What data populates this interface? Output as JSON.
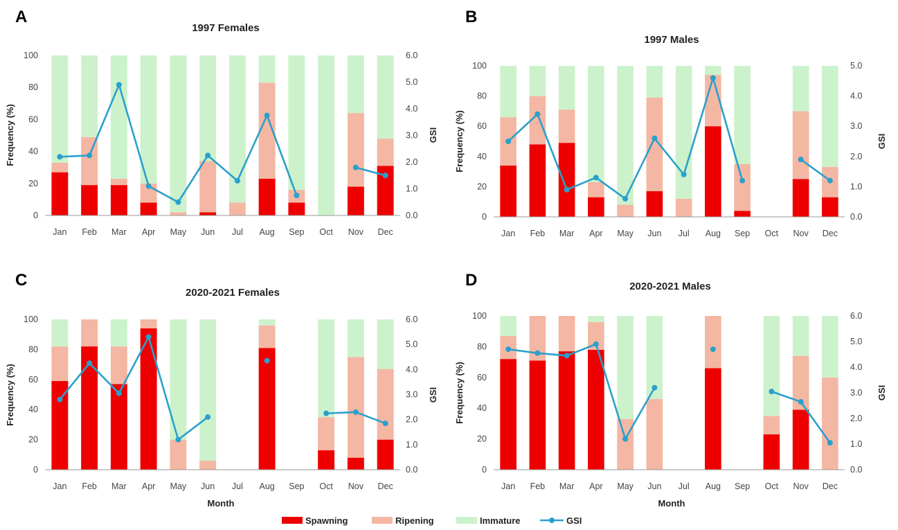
{
  "colors": {
    "spawning": "#ee0000",
    "ripening": "#f4b7a3",
    "immature": "#ccf2cc",
    "gsi": "#2aa0cc",
    "axis": "#9a9a9a"
  },
  "legend": [
    {
      "key": "spawning",
      "label": "Spawning",
      "kind": "box"
    },
    {
      "key": "ripening",
      "label": "Ripening",
      "kind": "box"
    },
    {
      "key": "immature",
      "label": "Immature",
      "kind": "box"
    },
    {
      "key": "gsi",
      "label": "GSI",
      "kind": "line"
    }
  ],
  "chart_data": [
    {
      "panel": "A",
      "type": "bar",
      "title": "1997  Females",
      "xlabel": "",
      "ylabel": "Frequency (%)",
      "y2label": "GSI",
      "ylim": [
        0,
        100
      ],
      "yticks": [
        "0",
        "20",
        "40",
        "60",
        "80",
        "100"
      ],
      "y2lim": [
        0,
        6
      ],
      "y2ticks": [
        "0.0",
        "1.0",
        "2.0",
        "3.0",
        "4.0",
        "5.0",
        "6.0"
      ],
      "categories": [
        "Jan",
        "Feb",
        "Mar",
        "Apr",
        "May",
        "Jun",
        "Jul",
        "Aug",
        "Sep",
        "Oct",
        "Nov",
        "Dec"
      ],
      "series": [
        {
          "key": "spawning",
          "name": "Spawning",
          "values": [
            27,
            19,
            19,
            8,
            0,
            2,
            0,
            23,
            8,
            0,
            18,
            31
          ]
        },
        {
          "key": "ripening",
          "name": "Ripening",
          "values": [
            6,
            30,
            4,
            12,
            2,
            32,
            8,
            60,
            8,
            0,
            46,
            17
          ]
        },
        {
          "key": "immature",
          "name": "Immature",
          "values": [
            67,
            51,
            77,
            80,
            98,
            66,
            92,
            17,
            84,
            100,
            36,
            52
          ]
        }
      ],
      "gsi": [
        2.2,
        2.25,
        4.9,
        1.1,
        0.5,
        2.25,
        1.3,
        3.75,
        0.75,
        null,
        1.8,
        1.5
      ]
    },
    {
      "panel": "B",
      "type": "bar",
      "title": "1997  Males",
      "xlabel": "",
      "ylabel": "Frequency (%)",
      "y2label": "GSI",
      "ylim": [
        0,
        100
      ],
      "yticks": [
        "0",
        "20",
        "40",
        "60",
        "80",
        "100"
      ],
      "y2lim": [
        0,
        5
      ],
      "y2ticks": [
        "0.0",
        "1.0",
        "2.0",
        "3.0",
        "4.0",
        "5.0"
      ],
      "categories": [
        "Jan",
        "Feb",
        "Mar",
        "Apr",
        "May",
        "Jun",
        "Jul",
        "Aug",
        "Sep",
        "Oct",
        "Nov",
        "Dec"
      ],
      "series": [
        {
          "key": "spawning",
          "name": "Spawning",
          "values": [
            34,
            48,
            49,
            13,
            0,
            17,
            0,
            60,
            4,
            0,
            25,
            13
          ]
        },
        {
          "key": "ripening",
          "name": "Ripening",
          "values": [
            32,
            32,
            22,
            10,
            8,
            62,
            12,
            34,
            31,
            0,
            45,
            20
          ]
        },
        {
          "key": "immature",
          "name": "Immature",
          "values": [
            34,
            20,
            29,
            77,
            92,
            21,
            88,
            6,
            65,
            0,
            30,
            67
          ]
        }
      ],
      "gsi": [
        2.5,
        3.4,
        0.9,
        1.3,
        0.6,
        2.6,
        1.4,
        4.6,
        1.2,
        null,
        1.9,
        1.2
      ]
    },
    {
      "panel": "C",
      "type": "bar",
      "title": "2020-2021  Females",
      "xlabel": "Month",
      "ylabel": "Frequency (%)",
      "y2label": "GSI",
      "ylim": [
        0,
        100
      ],
      "yticks": [
        "0",
        "20",
        "40",
        "60",
        "80",
        "100"
      ],
      "y2lim": [
        0,
        6
      ],
      "y2ticks": [
        "0.0",
        "1.0",
        "2.0",
        "3.0",
        "4.0",
        "5.0",
        "6.0"
      ],
      "categories": [
        "Jan",
        "Feb",
        "Mar",
        "Apr",
        "May",
        "Jun",
        "Jul",
        "Aug",
        "Sep",
        "Oct",
        "Nov",
        "Dec"
      ],
      "series": [
        {
          "key": "spawning",
          "name": "Spawning",
          "values": [
            59,
            82,
            57,
            94,
            0,
            0,
            0,
            81,
            0,
            13,
            8,
            20
          ]
        },
        {
          "key": "ripening",
          "name": "Ripening",
          "values": [
            23,
            18,
            25,
            6,
            20,
            6,
            0,
            15,
            0,
            22,
            67,
            47
          ]
        },
        {
          "key": "immature",
          "name": "Immature",
          "values": [
            18,
            0,
            18,
            0,
            80,
            94,
            0,
            4,
            0,
            65,
            25,
            33
          ]
        }
      ],
      "gsi": [
        2.8,
        4.25,
        3.05,
        5.3,
        1.2,
        2.1,
        null,
        4.35,
        null,
        2.25,
        2.3,
        1.85
      ]
    },
    {
      "panel": "D",
      "type": "bar",
      "title": "2020-2021  Males",
      "xlabel": "Month",
      "ylabel": "Frequency (%)",
      "y2label": "GSI",
      "ylim": [
        0,
        100
      ],
      "yticks": [
        "0",
        "20",
        "40",
        "60",
        "80",
        "100"
      ],
      "y2lim": [
        0,
        6
      ],
      "y2ticks": [
        "0.0",
        "1.0",
        "2.0",
        "3.0",
        "4.0",
        "5.0",
        "6.0"
      ],
      "categories": [
        "Jan",
        "Feb",
        "Mar",
        "Apr",
        "May",
        "Jun",
        "Jul",
        "Aug",
        "Sep",
        "Oct",
        "Nov",
        "Dec"
      ],
      "series": [
        {
          "key": "spawning",
          "name": "Spawning",
          "values": [
            72,
            71,
            77,
            78,
            0,
            0,
            0,
            66,
            0,
            23,
            39,
            0
          ]
        },
        {
          "key": "ripening",
          "name": "Ripening",
          "values": [
            15,
            29,
            23,
            18,
            33,
            46,
            0,
            34,
            0,
            12,
            35,
            60
          ]
        },
        {
          "key": "immature",
          "name": "Immature",
          "values": [
            13,
            0,
            0,
            4,
            67,
            54,
            0,
            0,
            0,
            65,
            26,
            40
          ]
        }
      ],
      "gsi": [
        4.7,
        4.55,
        4.45,
        4.9,
        1.2,
        3.2,
        null,
        4.7,
        null,
        3.05,
        2.65,
        1.05
      ]
    }
  ]
}
